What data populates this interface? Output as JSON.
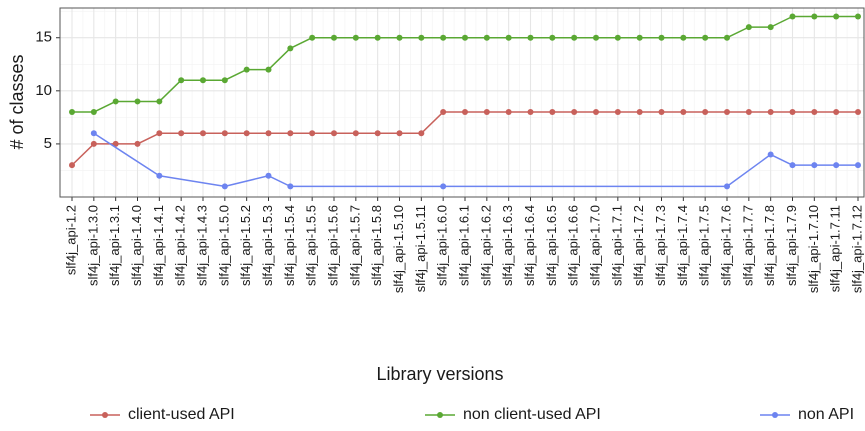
{
  "chart_data": {
    "type": "line",
    "x_label": "Library versions",
    "y_label": "# of classes",
    "categories": [
      "slf4j_api-1.2",
      "slf4j_api-1.3.0",
      "slf4j_api-1.3.1",
      "slf4j_api-1.4.0",
      "slf4j_api-1.4.1",
      "slf4j_api-1.4.2",
      "slf4j_api-1.4.3",
      "slf4j_api-1.5.0",
      "slf4j_api-1.5.2",
      "slf4j_api-1.5.3",
      "slf4j_api-1.5.4",
      "slf4j_api-1.5.5",
      "slf4j_api-1.5.6",
      "slf4j_api-1.5.7",
      "slf4j_api-1.5.8",
      "slf4j_api-1.5.10",
      "slf4j_api-1.5.11",
      "slf4j_api-1.6.0",
      "slf4j_api-1.6.1",
      "slf4j_api-1.6.2",
      "slf4j_api-1.6.3",
      "slf4j_api-1.6.4",
      "slf4j_api-1.6.5",
      "slf4j_api-1.6.6",
      "slf4j_api-1.7.0",
      "slf4j_api-1.7.1",
      "slf4j_api-1.7.2",
      "slf4j_api-1.7.3",
      "slf4j_api-1.7.4",
      "slf4j_api-1.7.5",
      "slf4j_api-1.7.6",
      "slf4j_api-1.7.7",
      "slf4j_api-1.7.8",
      "slf4j_api-1.7.9",
      "slf4j_api-1.7.10",
      "slf4j_api-1.7.11",
      "slf4j_api-1.7.12"
    ],
    "series": [
      {
        "name": "client-used API",
        "color": "#c8615b",
        "values": [
          3,
          5,
          5,
          5,
          6,
          6,
          6,
          6,
          6,
          6,
          6,
          6,
          6,
          6,
          6,
          6,
          6,
          8,
          8,
          8,
          8,
          8,
          8,
          8,
          8,
          8,
          8,
          8,
          8,
          8,
          8,
          8,
          8,
          8,
          8,
          8,
          8
        ]
      },
      {
        "name": "non client-used API",
        "color": "#5aa833",
        "values": [
          8,
          8,
          9,
          9,
          9,
          11,
          11,
          11,
          12,
          12,
          14,
          15,
          15,
          15,
          15,
          15,
          15,
          15,
          15,
          15,
          15,
          15,
          15,
          15,
          15,
          15,
          15,
          15,
          15,
          15,
          15,
          16,
          16,
          17,
          17,
          17,
          17
        ]
      },
      {
        "name": "non API",
        "color": "#6d84f0",
        "values": [
          null,
          6,
          null,
          null,
          2,
          null,
          null,
          1,
          null,
          2,
          1,
          null,
          null,
          null,
          null,
          null,
          null,
          1,
          null,
          null,
          null,
          null,
          null,
          null,
          null,
          null,
          null,
          null,
          null,
          null,
          1,
          null,
          4,
          3,
          3,
          3,
          3
        ]
      }
    ],
    "connect_gaps": true,
    "ylim": [
      0,
      17.8
    ],
    "yticks": [
      5,
      10,
      15
    ],
    "grid": true,
    "minor_grid": true,
    "legend": "bottom"
  }
}
